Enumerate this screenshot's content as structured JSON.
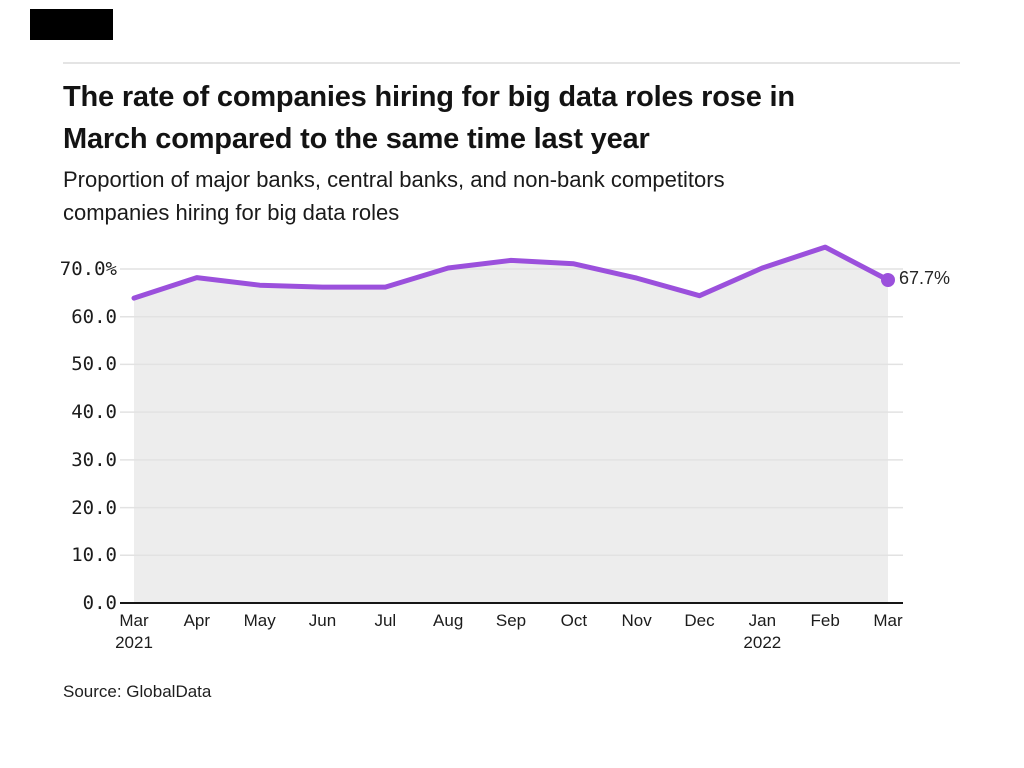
{
  "page": {
    "title_lines": [
      "The rate of companies hiring for big data roles rose in",
      "March compared to the same time last year"
    ],
    "subtitle_lines": [
      "Proportion of major banks, central banks, and non-bank competitors",
      "companies hiring for big data roles"
    ],
    "source": "Source: GlobalData",
    "logo_color": "#000000"
  },
  "chart_data": {
    "type": "area",
    "title": "The rate of companies hiring for big data roles rose in March compared to the same time last year",
    "subtitle": "Proportion of major banks, central banks, and non-bank competitors companies hiring for big data roles",
    "categories": [
      "Mar",
      "Apr",
      "May",
      "Jun",
      "Jul",
      "Aug",
      "Sep",
      "Oct",
      "Nov",
      "Dec",
      "Jan",
      "Feb",
      "Mar"
    ],
    "year_labels": [
      {
        "index": 0,
        "label": "2021"
      },
      {
        "index": 10,
        "label": "2022"
      }
    ],
    "values": [
      63.9,
      68.2,
      66.6,
      66.2,
      66.2,
      70.2,
      71.8,
      71.1,
      68.1,
      64.4,
      70.2,
      74.6,
      67.7
    ],
    "end_label": "67.7%",
    "yticks": [
      {
        "label": "70.0%",
        "value": 70
      },
      {
        "label": "60.0",
        "value": 60
      },
      {
        "label": "50.0",
        "value": 50
      },
      {
        "label": "40.0",
        "value": 40
      },
      {
        "label": "30.0",
        "value": 30
      },
      {
        "label": "20.0",
        "value": 20
      },
      {
        "label": "10.0",
        "value": 10
      },
      {
        "label": "0.0",
        "value": 0
      }
    ],
    "ylim": [
      0,
      70
    ],
    "xlabel": "",
    "ylabel": "",
    "grid": true,
    "legend_position": "none",
    "line_color": "#9b50dc",
    "marker_color": "#9b50dc",
    "fill_color": "#ededed",
    "grid_color": "#e2e2e2",
    "axis_color": "#161616"
  }
}
